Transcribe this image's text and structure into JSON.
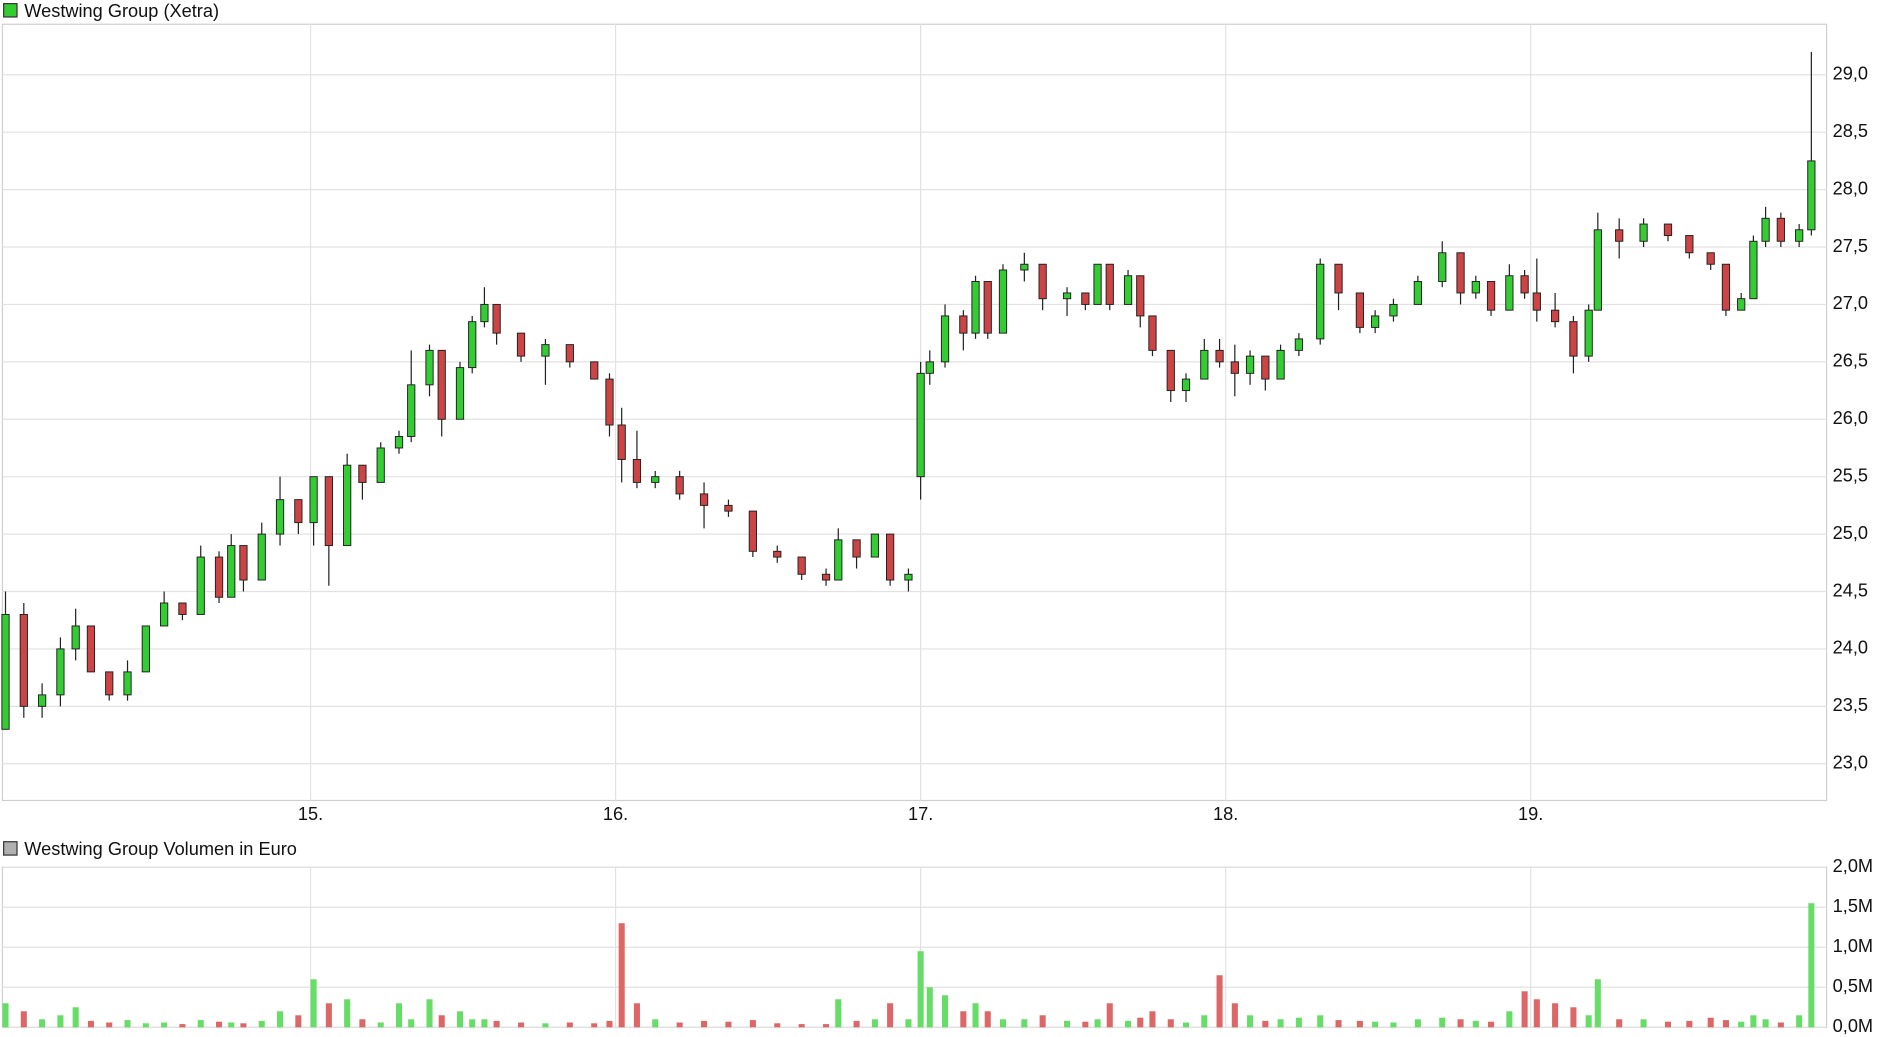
{
  "chart_data": [
    {
      "type": "candlestick",
      "title": "Westwing Group (Xetra)",
      "up_color": "#33cc33",
      "down_color": "#cc4444",
      "grid": true,
      "xlim": [
        13.99,
        19.97
      ],
      "xticks": [
        {
          "value": 15,
          "label": "15."
        },
        {
          "value": 16,
          "label": "16."
        },
        {
          "value": 17,
          "label": "17."
        },
        {
          "value": 18,
          "label": "18."
        },
        {
          "value": 19,
          "label": "19."
        }
      ],
      "ylim": [
        22.68,
        29.44
      ],
      "yticks": [
        {
          "value": 23,
          "label": "23,0"
        },
        {
          "value": 23.5,
          "label": "23,5"
        },
        {
          "value": 24,
          "label": "24,0"
        },
        {
          "value": 24.5,
          "label": "24,5"
        },
        {
          "value": 25,
          "label": "25,0"
        },
        {
          "value": 25.5,
          "label": "25,5"
        },
        {
          "value": 26,
          "label": "26,0"
        },
        {
          "value": 26.5,
          "label": "26,5"
        },
        {
          "value": 27,
          "label": "27,0"
        },
        {
          "value": 27.5,
          "label": "27,5"
        },
        {
          "value": 28,
          "label": "28,0"
        },
        {
          "value": 28.5,
          "label": "28,5"
        },
        {
          "value": 29,
          "label": "29,0"
        }
      ],
      "x": [
        14.0,
        14.06,
        14.12,
        14.18,
        14.23,
        14.28,
        14.34,
        14.4,
        14.46,
        14.52,
        14.58,
        14.64,
        14.7,
        14.74,
        14.78,
        14.84,
        14.9,
        14.96,
        15.01,
        15.06,
        15.12,
        15.17,
        15.23,
        15.29,
        15.33,
        15.39,
        15.43,
        15.49,
        15.53,
        15.57,
        15.61,
        15.69,
        15.77,
        15.85,
        15.93,
        15.98,
        16.02,
        16.07,
        16.13,
        16.21,
        16.29,
        16.37,
        16.45,
        16.53,
        16.61,
        16.69,
        16.73,
        16.79,
        16.85,
        16.9,
        16.96,
        17.0,
        17.03,
        17.08,
        17.14,
        17.18,
        17.22,
        17.27,
        17.34,
        17.4,
        17.48,
        17.54,
        17.58,
        17.62,
        17.68,
        17.72,
        17.76,
        17.82,
        17.87,
        17.93,
        17.98,
        18.03,
        18.08,
        18.13,
        18.18,
        18.24,
        18.31,
        18.37,
        18.44,
        18.49,
        18.55,
        18.63,
        18.71,
        18.77,
        18.82,
        18.87,
        18.93,
        18.98,
        19.02,
        19.08,
        19.14,
        19.19,
        19.22,
        19.29,
        19.37,
        19.45,
        19.52,
        19.59,
        19.64,
        19.69,
        19.73,
        19.77,
        19.82,
        19.88,
        19.92
      ],
      "open": [
        23.3,
        24.3,
        23.5,
        23.6,
        24.0,
        24.2,
        23.8,
        23.6,
        23.8,
        24.2,
        24.4,
        24.3,
        24.8,
        24.45,
        24.9,
        24.6,
        25.0,
        25.3,
        25.1,
        25.5,
        24.9,
        25.6,
        25.45,
        25.75,
        25.85,
        26.3,
        26.6,
        26.0,
        26.45,
        26.85,
        27.0,
        26.75,
        26.55,
        26.65,
        26.5,
        26.35,
        25.95,
        25.65,
        25.45,
        25.5,
        25.35,
        25.25,
        25.2,
        24.85,
        24.8,
        24.65,
        24.6,
        24.95,
        24.8,
        25.0,
        24.6,
        25.5,
        26.4,
        26.5,
        26.9,
        26.75,
        27.2,
        26.75,
        27.3,
        27.35,
        27.05,
        27.1,
        27.0,
        27.35,
        27.0,
        27.25,
        26.9,
        26.6,
        26.25,
        26.35,
        26.6,
        26.5,
        26.4,
        26.55,
        26.35,
        26.6,
        26.7,
        27.35,
        27.1,
        26.8,
        26.9,
        27.0,
        27.2,
        27.45,
        27.1,
        27.2,
        26.95,
        27.25,
        27.1,
        26.95,
        26.85,
        26.55,
        26.95,
        27.65,
        27.55,
        27.7,
        27.6,
        27.45,
        27.35,
        26.95,
        27.05,
        27.55,
        27.75,
        27.55,
        27.65
      ],
      "high": [
        24.5,
        24.4,
        23.7,
        24.1,
        24.35,
        24.2,
        23.8,
        23.9,
        24.2,
        24.5,
        24.4,
        24.9,
        24.85,
        25.0,
        24.9,
        25.1,
        25.5,
        25.3,
        25.5,
        25.5,
        25.7,
        25.6,
        25.8,
        25.9,
        26.6,
        26.65,
        26.6,
        26.5,
        26.9,
        27.15,
        27.0,
        26.75,
        26.7,
        26.65,
        26.5,
        26.4,
        26.1,
        25.9,
        25.55,
        25.55,
        25.45,
        25.3,
        25.2,
        24.9,
        24.8,
        24.7,
        25.05,
        24.95,
        25.0,
        25.0,
        24.7,
        26.5,
        26.6,
        27.0,
        26.95,
        27.25,
        27.2,
        27.35,
        27.45,
        27.35,
        27.15,
        27.1,
        27.35,
        27.35,
        27.3,
        27.25,
        26.9,
        26.6,
        26.4,
        26.7,
        26.7,
        26.65,
        26.6,
        26.55,
        26.65,
        26.75,
        27.4,
        27.35,
        27.1,
        26.95,
        27.05,
        27.25,
        27.55,
        27.45,
        27.25,
        27.2,
        27.35,
        27.3,
        27.4,
        27.1,
        26.9,
        27.0,
        27.8,
        27.75,
        27.75,
        27.7,
        27.6,
        27.45,
        27.35,
        27.1,
        27.6,
        27.85,
        27.8,
        27.7,
        29.2
      ],
      "low": [
        23.3,
        23.4,
        23.4,
        23.5,
        23.9,
        23.8,
        23.55,
        23.55,
        23.8,
        24.2,
        24.25,
        24.3,
        24.4,
        24.45,
        24.5,
        24.6,
        24.9,
        25.0,
        24.9,
        24.55,
        24.9,
        25.3,
        25.45,
        25.7,
        25.8,
        26.2,
        25.85,
        26.0,
        26.4,
        26.8,
        26.65,
        26.5,
        26.3,
        26.45,
        26.35,
        25.85,
        25.45,
        25.4,
        25.4,
        25.3,
        25.05,
        25.15,
        24.8,
        24.75,
        24.6,
        24.55,
        24.6,
        24.7,
        24.8,
        24.55,
        24.5,
        25.3,
        26.3,
        26.45,
        26.6,
        26.7,
        26.7,
        26.75,
        27.2,
        26.95,
        26.9,
        26.95,
        27.0,
        26.95,
        27.0,
        26.8,
        26.55,
        26.15,
        26.15,
        26.35,
        26.45,
        26.2,
        26.3,
        26.25,
        26.35,
        26.55,
        26.65,
        26.95,
        26.75,
        26.75,
        26.85,
        27.0,
        27.15,
        27.0,
        27.05,
        26.9,
        26.95,
        27.05,
        26.85,
        26.8,
        26.4,
        26.5,
        26.95,
        27.4,
        27.5,
        27.55,
        27.4,
        27.3,
        26.9,
        26.95,
        27.05,
        27.5,
        27.5,
        27.5,
        27.6
      ],
      "close": [
        24.3,
        23.5,
        23.6,
        24.0,
        24.2,
        23.8,
        23.6,
        23.8,
        24.2,
        24.4,
        24.3,
        24.8,
        24.45,
        24.9,
        24.6,
        25.0,
        25.3,
        25.1,
        25.5,
        24.9,
        25.6,
        25.45,
        25.75,
        25.85,
        26.3,
        26.6,
        26.0,
        26.45,
        26.85,
        27.0,
        26.75,
        26.55,
        26.65,
        26.5,
        26.35,
        25.95,
        25.65,
        25.45,
        25.5,
        25.35,
        25.25,
        25.2,
        24.85,
        24.8,
        24.65,
        24.6,
        24.95,
        24.8,
        25.0,
        24.6,
        24.65,
        26.4,
        26.5,
        26.9,
        26.75,
        27.2,
        26.75,
        27.3,
        27.35,
        27.05,
        27.1,
        27.0,
        27.35,
        27.0,
        27.25,
        26.9,
        26.6,
        26.25,
        26.35,
        26.6,
        26.5,
        26.4,
        26.55,
        26.35,
        26.6,
        26.7,
        27.35,
        27.1,
        26.8,
        26.9,
        27.0,
        27.2,
        27.45,
        27.1,
        27.2,
        26.95,
        27.25,
        27.1,
        26.95,
        26.85,
        26.55,
        26.95,
        27.65,
        27.55,
        27.7,
        27.6,
        27.45,
        27.35,
        26.95,
        27.05,
        27.55,
        27.75,
        27.55,
        27.65,
        28.25
      ]
    },
    {
      "type": "volume",
      "title": "Westwing Group Volumen in Euro",
      "up_color": "#66dd66",
      "down_color": "#dd6666",
      "grid": true,
      "ylim": [
        0,
        2000000
      ],
      "yticks": [
        {
          "value": 0,
          "label": "0,0M"
        },
        {
          "value": 500000,
          "label": "0,5M"
        },
        {
          "value": 1000000,
          "label": "1,0M"
        },
        {
          "value": 1500000,
          "label": "1,5M"
        },
        {
          "value": 2000000,
          "label": "2,0M"
        }
      ],
      "values": [
        300000,
        200000,
        100000,
        150000,
        250000,
        80000,
        60000,
        90000,
        50000,
        60000,
        40000,
        90000,
        70000,
        60000,
        50000,
        80000,
        200000,
        150000,
        600000,
        300000,
        350000,
        100000,
        60000,
        300000,
        100000,
        350000,
        150000,
        200000,
        100000,
        100000,
        80000,
        60000,
        50000,
        60000,
        50000,
        80000,
        1300000,
        300000,
        100000,
        60000,
        80000,
        70000,
        90000,
        50000,
        40000,
        40000,
        350000,
        80000,
        100000,
        300000,
        100000,
        950000,
        500000,
        400000,
        200000,
        300000,
        200000,
        100000,
        100000,
        150000,
        80000,
        70000,
        100000,
        300000,
        80000,
        120000,
        200000,
        100000,
        60000,
        150000,
        650000,
        300000,
        150000,
        80000,
        100000,
        120000,
        150000,
        90000,
        80000,
        70000,
        60000,
        100000,
        120000,
        100000,
        80000,
        70000,
        200000,
        450000,
        350000,
        300000,
        250000,
        150000,
        600000,
        100000,
        100000,
        70000,
        80000,
        120000,
        90000,
        70000,
        150000,
        100000,
        60000,
        150000,
        1550000
      ]
    }
  ]
}
